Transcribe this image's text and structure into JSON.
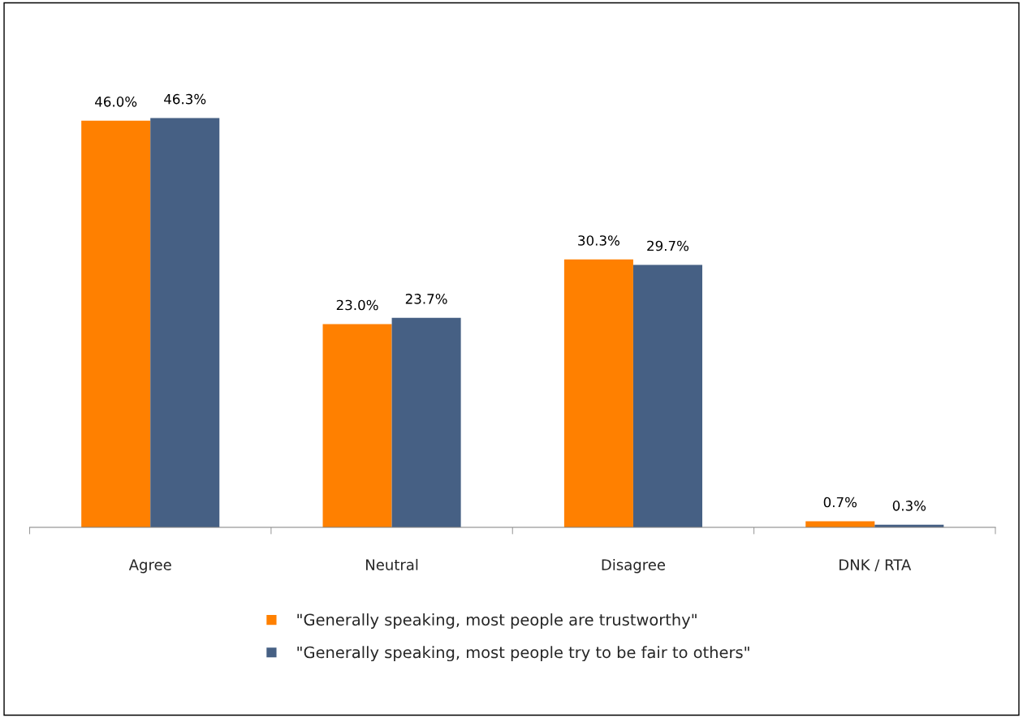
{
  "chart_data": {
    "type": "bar",
    "categories": [
      "Agree",
      "Neutral",
      "Disagree",
      "DNK / RTA"
    ],
    "series": [
      {
        "name": "\"Generally speaking, most people are trustworthy\"",
        "color": "#ff8000",
        "values": [
          46.0,
          23.0,
          30.3,
          0.7
        ],
        "value_labels": [
          "46.0%",
          "23.0%",
          "30.3%",
          "0.7%"
        ]
      },
      {
        "name": "\"Generally speaking, most people try to be fair to others\"",
        "color": "#466084",
        "values": [
          46.3,
          23.7,
          29.7,
          0.3
        ],
        "value_labels": [
          "46.3%",
          "23.7%",
          "29.7%",
          "0.3%"
        ]
      }
    ],
    "tick_labels": "x",
    "grid": false,
    "legend": "bottom"
  }
}
